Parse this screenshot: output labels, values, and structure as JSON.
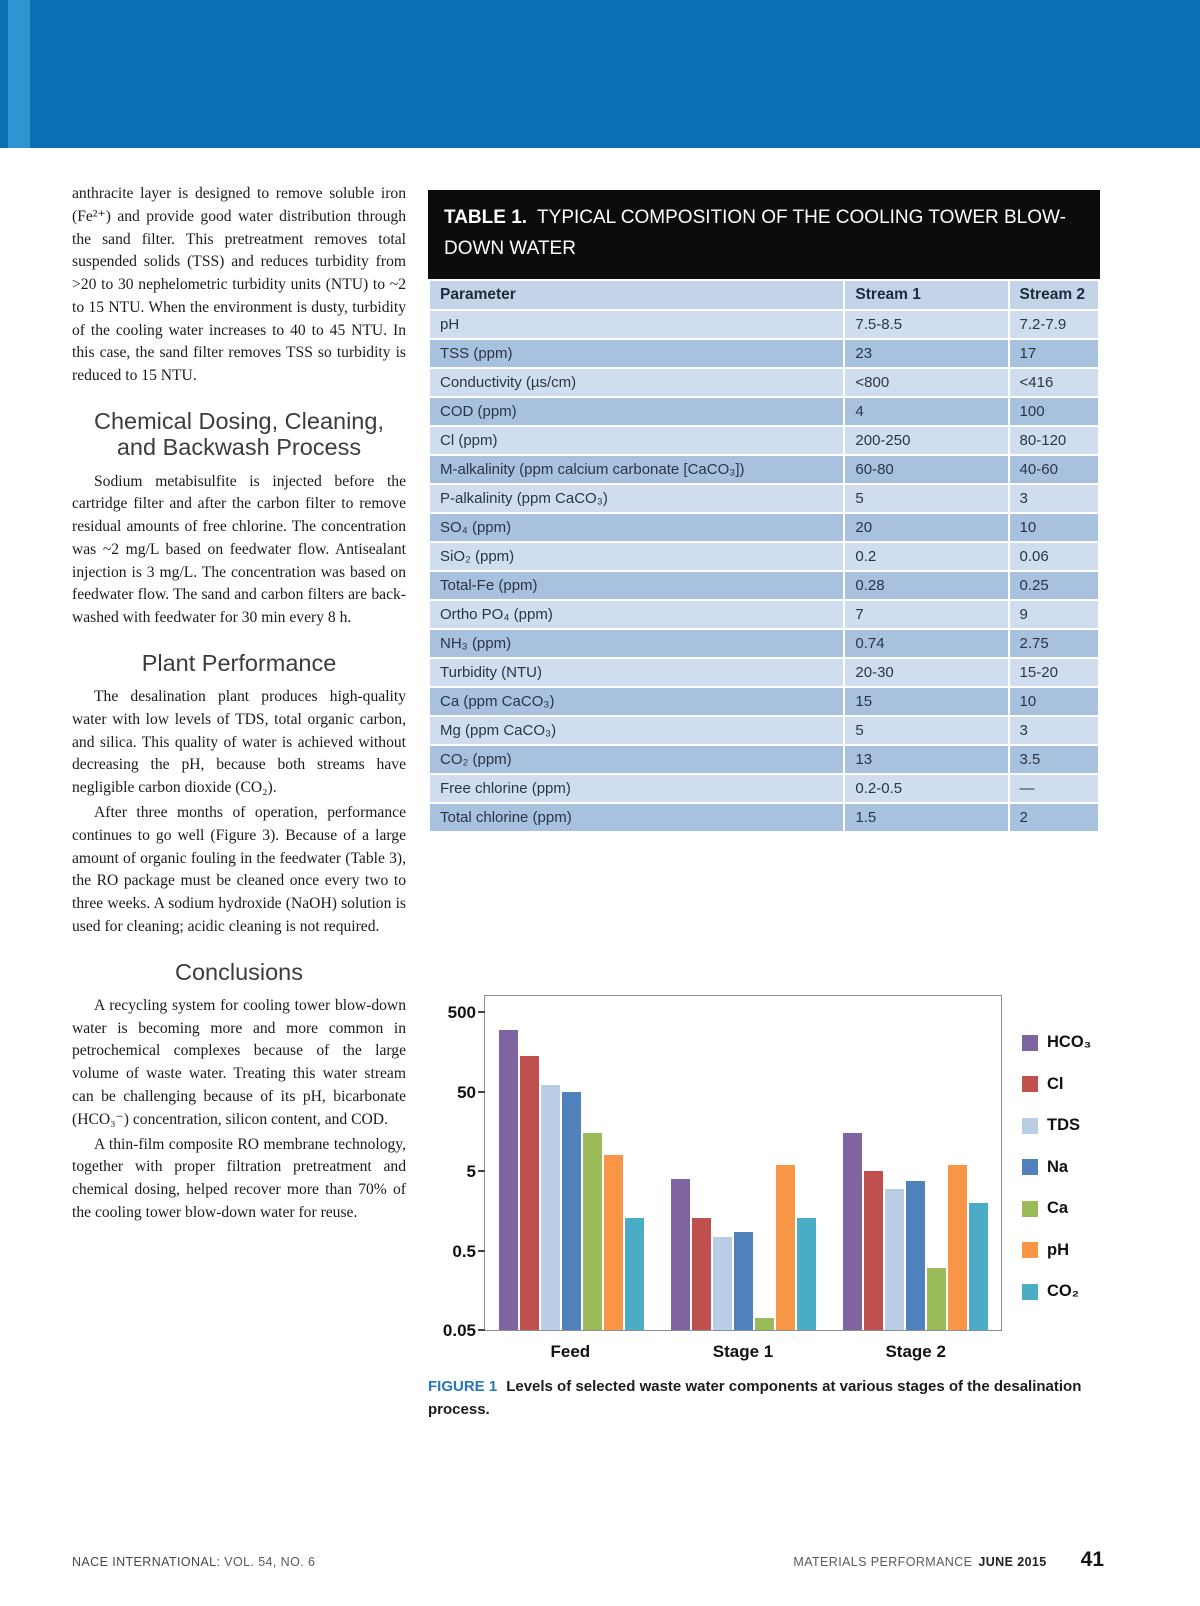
{
  "theme": {
    "band_blue": "#0b70b3",
    "band_stripe": "#2e95d2",
    "title_bar": "#0c0c0c",
    "header_row": "#c3d4e9",
    "row_light": "#d0ddee",
    "row_dark": "#a7c1df",
    "caption_blue": "#2678bd"
  },
  "article": {
    "intro": "anthracite layer is designed to remove soluble iron (Fe²⁺) and provide good water distribution through the sand filter. This pretreatment removes total suspended solids (TSS) and reduces turbidity from >20 to 30 nephelometric turbidity units (NTU) to ~2 to 15 NTU. When the environment is dusty, turbidity of the cooling water increases to 40 to 45 NTU. In this case, the sand filter removes TSS so turbidity is reduced to 15 NTU.",
    "heading_dosing": "Chemical Dosing, Cleaning, and Backwash Process",
    "para_dosing": "Sodium metabisulfite is injected before the cartridge filter and after the carbon filter to remove residual amounts of free chlorine. The concentration was ~2 mg/L based on feedwater flow. Antisealant injection is 3 mg/L. The concentration was based on feedwater flow. The sand and carbon filters are back-washed with feedwater for 30 min every 8 h.",
    "heading_performance": "Plant Performance",
    "para_performance_1": "The desalination plant produces high-quality water with low levels of TDS, total organic carbon, and silica. This quality of water is achieved without decreasing the pH, because both streams have negligible carbon dioxide (CO₂).",
    "para_performance_2": "After three months of operation, performance continues to go well (Figure 3). Because of a large amount of organic fouling in the feedwater (Table 3), the RO package must be cleaned once every two to three weeks. A sodium hydroxide (NaOH) solution is used for cleaning; acidic cleaning is not required.",
    "heading_conclusions": "Conclusions",
    "para_conclusions_1": "A recycling system for cooling tower blow-down water is becoming more and more common in petrochemical complexes because of the large volume of waste water. Treating this water stream can be challenging because of its pH, bicarbonate (HCO₃⁻) concentration, silicon content, and COD.",
    "para_conclusions_2": "A thin-film composite RO membrane technology, together with proper filtration pretreatment and chemical dosing, helped recover more than 70% of the cooling tower blow-down water for reuse."
  },
  "table": {
    "title_label": "TABLE 1.",
    "title_text": "TYPICAL COMPOSITION OF THE COOLING TOWER BLOW-DOWN WATER",
    "columns": [
      "Parameter",
      "Stream 1",
      "Stream 2"
    ],
    "rows": [
      [
        "pH",
        "7.5-8.5",
        "7.2-7.9"
      ],
      [
        "TSS (ppm)",
        "23",
        "17"
      ],
      [
        "Conductivity (µs/cm)",
        "<800",
        "<416"
      ],
      [
        "COD (ppm)",
        "4",
        "100"
      ],
      [
        "Cl (ppm)",
        "200-250",
        "80-120"
      ],
      [
        "M-alkalinity (ppm calcium carbonate [CaCO₃])",
        "60-80",
        "40-60"
      ],
      [
        "P-alkalinity (ppm CaCO₃)",
        "5",
        "3"
      ],
      [
        "SO₄ (ppm)",
        "20",
        "10"
      ],
      [
        "SiO₂ (ppm)",
        "0.2",
        "0.06"
      ],
      [
        "Total-Fe (ppm)",
        "0.28",
        "0.25"
      ],
      [
        "Ortho PO₄ (ppm)",
        "7",
        "9"
      ],
      [
        "NH₃ (ppm)",
        "0.74",
        "2.75"
      ],
      [
        "Turbidity (NTU)",
        "20-30",
        "15-20"
      ],
      [
        "Ca (ppm CaCO₃)",
        "15",
        "10"
      ],
      [
        "Mg (ppm CaCO₃)",
        "5",
        "3"
      ],
      [
        "CO₂ (ppm)",
        "13",
        "3.5"
      ],
      [
        "Free chlorine (ppm)",
        "0.2-0.5",
        "—"
      ],
      [
        "Total chlorine (ppm)",
        "1.5",
        "2"
      ]
    ]
  },
  "chart_data": {
    "type": "bar",
    "scale": "log",
    "title": "",
    "xlabel": "",
    "ylabel": "",
    "categories": [
      "Feed",
      "Stage 1",
      "Stage 2"
    ],
    "series": [
      {
        "name": "HCO₃",
        "color": "#8064a2",
        "values": [
          300,
          4,
          15
        ]
      },
      {
        "name": "Cl",
        "color": "#c0504d",
        "values": [
          140,
          1.3,
          5
        ]
      },
      {
        "name": "TDS",
        "color": "#b9cde5",
        "values": [
          60,
          0.75,
          3
        ]
      },
      {
        "name": "Na",
        "color": "#4f81bd",
        "values": [
          50,
          0.85,
          3.8
        ]
      },
      {
        "name": "Ca",
        "color": "#9bbb59",
        "values": [
          15,
          0.07,
          0.3
        ]
      },
      {
        "name": "pH",
        "color": "#f79646",
        "values": [
          8,
          6,
          6
        ]
      },
      {
        "name": "CO₂",
        "color": "#4bacc6",
        "values": [
          1.3,
          1.3,
          2
        ]
      }
    ],
    "yticks": [
      500,
      50,
      5,
      0.5,
      0.05
    ],
    "ymin": 0.05,
    "ymax": 800,
    "grid": false,
    "legend_position": "right"
  },
  "figure": {
    "label": "FIGURE 1",
    "caption": "Levels of selected waste water components at various stages of the desalination process."
  },
  "footer": {
    "left_label": "NACE INTERNATIONAL:",
    "left_detail": "VOL. 54, NO. 6",
    "journal": "MATERIALS PERFORMANCE",
    "issue": "JUNE 2015",
    "page_number": "41"
  }
}
